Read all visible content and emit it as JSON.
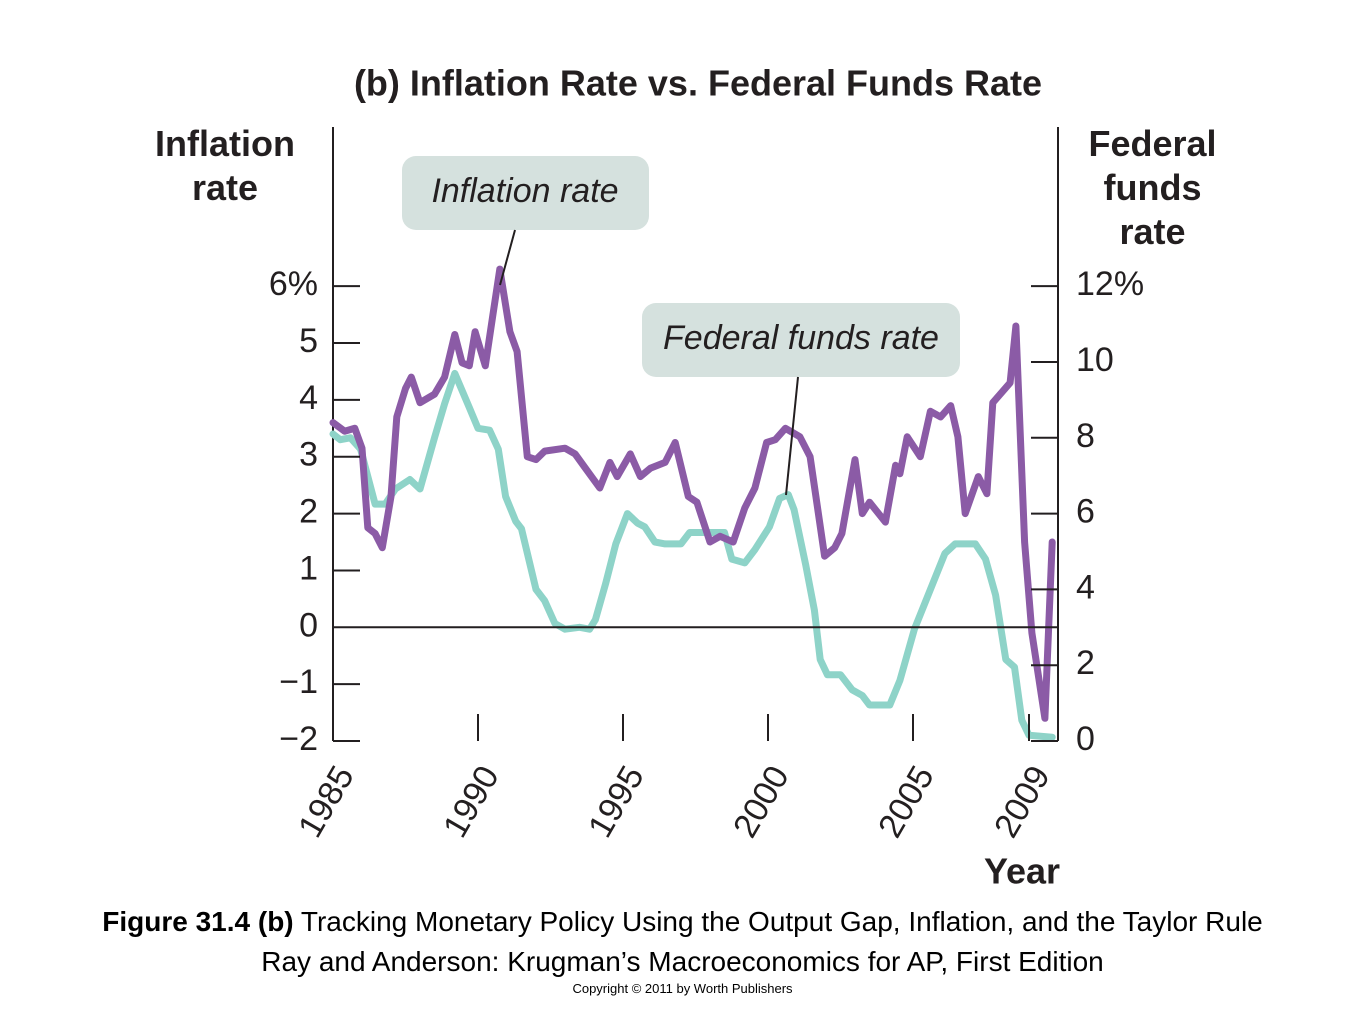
{
  "chart_data": {
    "type": "line",
    "title": "(b) Inflation Rate vs. Federal Funds Rate",
    "ylabel": "Inflation rate",
    "y2label": "Federal funds rate",
    "xlabel": "Year",
    "xlim": [
      1985,
      2010
    ],
    "xticks": [
      1985,
      1990,
      1995,
      2000,
      2005,
      2009
    ],
    "ylim": [
      -2,
      8.8
    ],
    "yticks": [
      {
        "value": -2,
        "label": "−2"
      },
      {
        "value": -1,
        "label": "−1"
      },
      0,
      1,
      2,
      3,
      4,
      5,
      {
        "value": 6,
        "label": "6%"
      }
    ],
    "y2lim": [
      0,
      16.2
    ],
    "y2ticks": [
      0,
      2,
      4,
      6,
      8,
      10,
      {
        "value": 12,
        "label": "12%"
      }
    ],
    "series": [
      {
        "name": "Inflation rate",
        "color": "#8b5ba6",
        "x": [
          1985.0,
          1985.4,
          1985.75,
          1986.0,
          1986.2,
          1986.45,
          1986.7,
          1987.0,
          1987.2,
          1987.5,
          1987.7,
          1988.0,
          1988.5,
          1988.85,
          1989.2,
          1989.45,
          1989.7,
          1989.9,
          1990.25,
          1990.5,
          1990.75,
          1991.1,
          1991.35,
          1991.7,
          1992.0,
          1992.3,
          1993.0,
          1993.35,
          1993.7,
          1994.2,
          1994.55,
          1994.8,
          1995.25,
          1995.6,
          1995.95,
          1996.45,
          1996.8,
          1997.25,
          1997.55,
          1998.0,
          1998.35,
          1998.8,
          1999.2,
          1999.55,
          1999.95,
          2000.25,
          2000.6,
          2001.1,
          2001.45,
          2001.95,
          2002.3,
          2002.55,
          2003.0,
          2003.25,
          2003.5,
          2004.05,
          2004.4,
          2004.55,
          2004.8,
          2005.25,
          2005.6,
          2005.95,
          2006.3,
          2006.55,
          2006.8,
          2007.25,
          2007.55,
          2007.75,
          2008.35,
          2008.55,
          2008.85,
          2009.1,
          2009.55,
          2009.8
        ],
        "values": [
          3.6,
          3.45,
          3.5,
          3.15,
          1.75,
          1.65,
          1.4,
          2.3,
          3.7,
          4.2,
          4.4,
          3.95,
          4.1,
          4.4,
          5.15,
          4.65,
          4.6,
          5.2,
          4.6,
          5.45,
          6.3,
          5.2,
          4.85,
          3.0,
          2.95,
          3.1,
          3.15,
          3.05,
          2.8,
          2.45,
          2.9,
          2.65,
          3.05,
          2.65,
          2.8,
          2.9,
          3.25,
          2.3,
          2.2,
          1.5,
          1.6,
          1.5,
          2.1,
          2.45,
          3.25,
          3.3,
          3.5,
          3.35,
          3.0,
          1.25,
          1.4,
          1.65,
          2.95,
          2.0,
          2.2,
          1.85,
          2.85,
          2.7,
          3.35,
          3.0,
          3.8,
          3.7,
          3.9,
          3.35,
          2.0,
          2.65,
          2.35,
          3.95,
          4.3,
          5.3,
          1.5,
          -0.1,
          -1.6,
          1.5
        ]
      },
      {
        "name": "Federal funds rate",
        "color": "#8ed3c8",
        "axis": "y2",
        "x": [
          1985.0,
          1985.25,
          1985.6,
          1985.95,
          1986.45,
          1986.8,
          1987.15,
          1987.65,
          1988.0,
          1988.5,
          1988.85,
          1989.2,
          1989.7,
          1990.0,
          1990.4,
          1990.7,
          1990.95,
          1991.3,
          1991.5,
          1992.0,
          1992.3,
          1992.65,
          1993.0,
          1993.5,
          1993.85,
          1994.05,
          1994.4,
          1994.75,
          1995.15,
          1995.5,
          1995.75,
          1996.1,
          1996.45,
          1997.0,
          1997.3,
          1997.8,
          1998.35,
          1998.5,
          1998.75,
          1999.2,
          1999.55,
          2000.05,
          2000.4,
          2000.7,
          2000.9,
          2001.3,
          2001.6,
          2001.8,
          2002.05,
          2002.5,
          2002.9,
          2003.25,
          2003.5,
          2004.2,
          2004.55,
          2005.05,
          2005.6,
          2006.1,
          2006.45,
          2007.15,
          2007.5,
          2007.85,
          2008.2,
          2008.5,
          2008.75,
          2009.0,
          2009.8
        ],
        "values": [
          8.1,
          7.95,
          8.0,
          7.7,
          6.25,
          6.25,
          6.65,
          6.9,
          6.65,
          8.0,
          8.9,
          9.7,
          8.8,
          8.25,
          8.2,
          7.7,
          6.45,
          5.8,
          5.6,
          4.0,
          3.7,
          3.1,
          2.95,
          3.0,
          2.95,
          3.2,
          4.15,
          5.2,
          6.0,
          5.75,
          5.65,
          5.25,
          5.2,
          5.2,
          5.5,
          5.5,
          5.5,
          5.5,
          4.8,
          4.7,
          5.05,
          5.65,
          6.4,
          6.5,
          6.1,
          4.65,
          3.45,
          2.15,
          1.75,
          1.75,
          1.35,
          1.2,
          0.95,
          0.95,
          1.6,
          2.95,
          4.0,
          4.95,
          5.2,
          5.2,
          4.8,
          3.85,
          2.15,
          1.95,
          0.55,
          0.15,
          0.1
        ]
      }
    ]
  },
  "caption": {
    "label": "Figure 31.4 (b)",
    "text": "Tracking Monetary Policy Using the Output Gap, Inflation, and the Taylor Rule",
    "source": "Ray and Anderson: Krugman’s Macroeconomics for AP, First Edition",
    "copyright": "Copyright © 2011 by Worth Publishers"
  }
}
